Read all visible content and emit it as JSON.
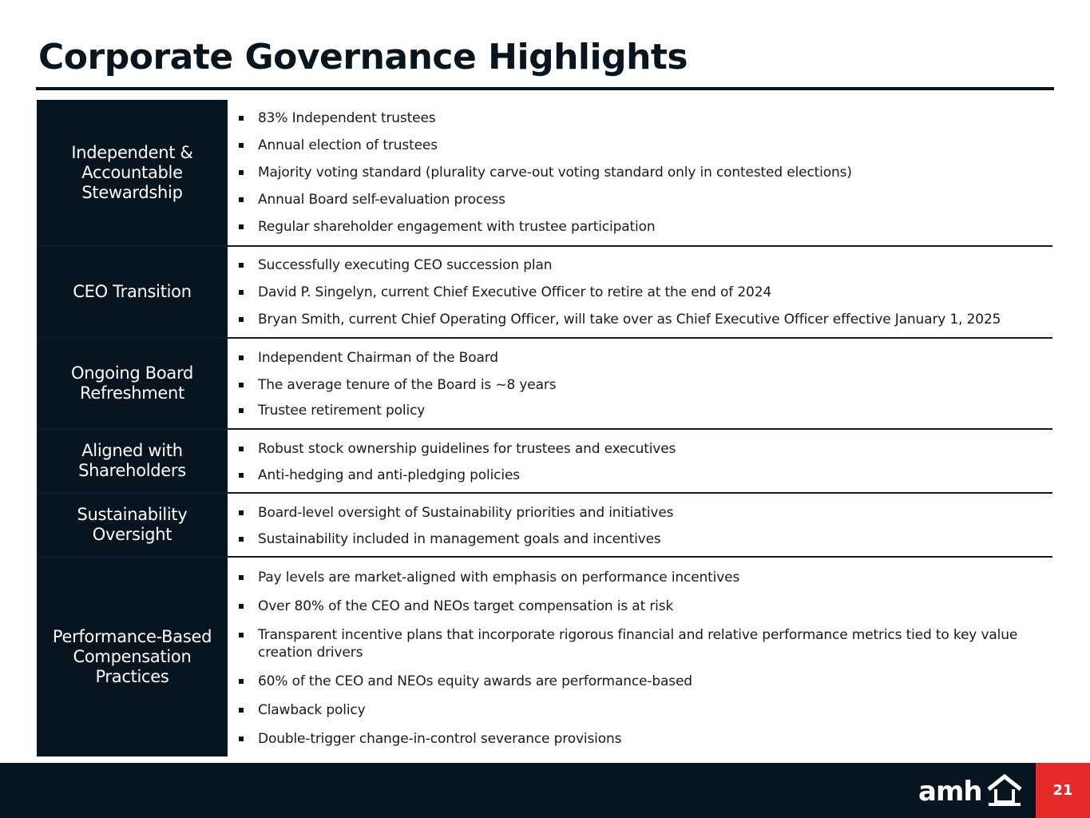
{
  "title": "Corporate Governance Highlights",
  "sections": [
    {
      "category": "Independent & Accountable Stewardship",
      "items": [
        "83% Independent trustees",
        "Annual election of trustees",
        "Majority voting standard (plurality carve-out voting standard only in contested elections)",
        "Annual Board self-evaluation process",
        "Regular shareholder engagement with trustee participation"
      ]
    },
    {
      "category": "CEO Transition",
      "items": [
        "Successfully executing CEO succession plan",
        "David P. Singelyn, current Chief Executive Officer to retire at the end of 2024",
        "Bryan Smith, current Chief Operating Officer, will take over as Chief Executive Officer effective January 1, 2025"
      ]
    },
    {
      "category": "Ongoing Board Refreshment",
      "items": [
        "Independent Chairman of the Board",
        "The average tenure of the Board is ~8 years",
        "Trustee retirement policy"
      ]
    },
    {
      "category": "Aligned with Shareholders",
      "items": [
        "Robust stock ownership guidelines for trustees and executives",
        "Anti-hedging and anti-pledging policies"
      ]
    },
    {
      "category": "Sustainability Oversight",
      "items": [
        "Board-level oversight of Sustainability priorities and initiatives",
        "Sustainability included in management goals and incentives"
      ]
    },
    {
      "category": "Performance-Based Compensation Practices",
      "items": [
        "Pay levels are market-aligned with emphasis on performance incentives",
        "Over 80% of the CEO and NEOs target compensation is at risk",
        "Transparent incentive plans that incorporate rigorous financial and relative performance metrics tied to key value creation drivers",
        "60% of the CEO and NEOs equity awards are performance-based",
        "Clawback policy",
        "Double-trigger change-in-control severance provisions"
      ]
    }
  ],
  "footer": {
    "logo_text": "amh",
    "logo_icon": "house-icon",
    "page_number": "21",
    "background_color": "#061520",
    "page_badge_color": "#e52a2a"
  }
}
